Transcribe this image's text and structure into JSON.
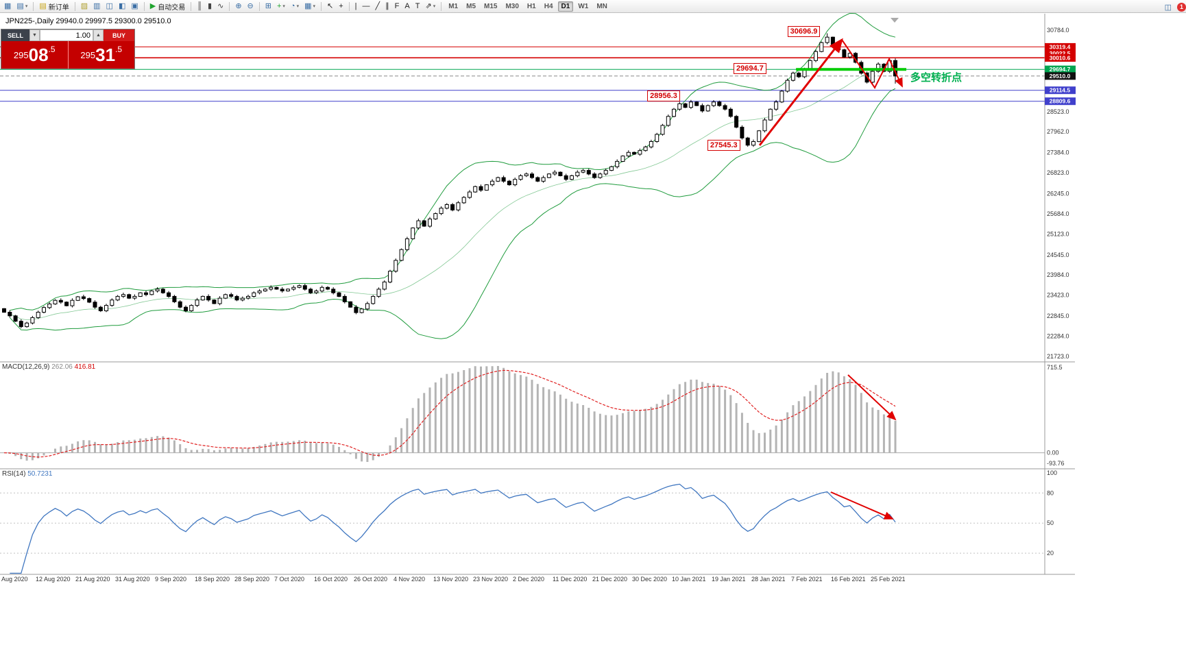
{
  "window": {
    "badge_count": "1"
  },
  "toolbar": {
    "dropdown_glyph": "▾",
    "items": [
      {
        "t": "icon",
        "name": "new-chart-icon",
        "g": "▦",
        "c": "#3a6ea5"
      },
      {
        "t": "icon",
        "name": "profiles-icon",
        "g": "▤",
        "c": "#3a6ea5",
        "dd": true
      },
      {
        "t": "sep"
      },
      {
        "t": "btn",
        "name": "new-order-button",
        "g": "▤",
        "c": "#c8a415",
        "label": "新订单"
      },
      {
        "t": "sep"
      },
      {
        "t": "icon",
        "name": "metaeditor-icon",
        "g": "▨",
        "c": "#b0a030"
      },
      {
        "t": "icon",
        "name": "market-watch-icon",
        "g": "▥",
        "c": "#3a6ea5"
      },
      {
        "t": "icon",
        "name": "data-window-icon",
        "g": "◫",
        "c": "#3a6ea5"
      },
      {
        "t": "icon",
        "name": "navigator-icon",
        "g": "◧",
        "c": "#3a6ea5"
      },
      {
        "t": "icon",
        "name": "terminal-icon",
        "g": "▣",
        "c": "#3a6ea5"
      },
      {
        "t": "sep"
      },
      {
        "t": "btn",
        "name": "autotrading-button",
        "g": "▶",
        "c": "#1fa32e",
        "label": "自动交易"
      },
      {
        "t": "sep"
      },
      {
        "t": "icon",
        "name": "bars-chart-icon",
        "g": "║",
        "c": "#444"
      },
      {
        "t": "icon",
        "name": "candlestick-chart-icon",
        "g": "▮",
        "c": "#444"
      },
      {
        "t": "icon",
        "name": "line-chart-icon",
        "g": "∿",
        "c": "#444"
      },
      {
        "t": "sep"
      },
      {
        "t": "icon",
        "name": "zoom-in-icon",
        "g": "⊕",
        "c": "#3a6ea5"
      },
      {
        "t": "icon",
        "name": "zoom-out-icon",
        "g": "⊖",
        "c": "#3a6ea5"
      },
      {
        "t": "sep"
      },
      {
        "t": "icon",
        "name": "tile-windows-icon",
        "g": "⊞",
        "c": "#3a6ea5"
      },
      {
        "t": "icon",
        "name": "indicators-icon",
        "g": "+",
        "c": "#1fa32e",
        "dd": true
      },
      {
        "t": "icon",
        "name": "periods-icon",
        "g": "◔",
        "c": "#3a6ea5",
        "dd": true
      },
      {
        "t": "icon",
        "name": "templates-icon",
        "g": "▦",
        "c": "#3a6ea5",
        "dd": true
      },
      {
        "t": "sep"
      },
      {
        "t": "icon",
        "name": "cursor-icon",
        "g": "↖",
        "c": "#222"
      },
      {
        "t": "icon",
        "name": "crosshair-icon",
        "g": "+",
        "c": "#222"
      },
      {
        "t": "sep"
      },
      {
        "t": "icon",
        "name": "vertical-line-icon",
        "g": "|",
        "c": "#222"
      },
      {
        "t": "icon",
        "name": "horizontal-line-icon",
        "g": "―",
        "c": "#222"
      },
      {
        "t": "icon",
        "name": "trendline-icon",
        "g": "╱",
        "c": "#222"
      },
      {
        "t": "icon",
        "name": "channel-icon",
        "g": "∥",
        "c": "#222"
      },
      {
        "t": "icon",
        "name": "fibonacci-icon",
        "g": "F",
        "c": "#222"
      },
      {
        "t": "icon",
        "name": "text-icon",
        "g": "A",
        "c": "#222"
      },
      {
        "t": "icon",
        "name": "label-icon",
        "g": "T",
        "c": "#222"
      },
      {
        "t": "icon",
        "name": "arrows-icon",
        "g": "⇗",
        "c": "#222",
        "dd": true
      },
      {
        "t": "sep"
      }
    ],
    "timeframes": [
      "M1",
      "M5",
      "M15",
      "M30",
      "H1",
      "H4",
      "D1",
      "W1",
      "MN"
    ],
    "active_timeframe": "D1",
    "right_icons": [
      {
        "name": "chart-window-icon",
        "g": "◫",
        "c": "#3a6ea5"
      },
      {
        "name": "alert-badge",
        "g": "1",
        "bg": "#e03030"
      }
    ]
  },
  "chart": {
    "symbol": "JPN225-",
    "period": "Daily",
    "title": "JPN225-,Daily 29940.0 29997.5 29300.0 29510.0",
    "ohlc": {
      "open": "29940.0",
      "high": "29997.5",
      "low": "29300.0",
      "close": "29510.0"
    }
  },
  "trade_panel": {
    "sell_label": "SELL",
    "buy_label": "BUY",
    "volume": "1.00",
    "spin_down_glyph": "▼",
    "spin_up_glyph": "▲",
    "sell_price": "29508.5",
    "buy_price": "29531.5",
    "sell_parts": {
      "head": "295",
      "big": "08",
      "frac": ".5"
    },
    "buy_parts": {
      "head": "295",
      "big": "31",
      "frac": ".5"
    }
  },
  "indicators_text": {
    "macd_name": "MACD(12,26,9)",
    "macd_value": "262.06",
    "macd_signal": "416.81",
    "rsi_name": "RSI(14)",
    "rsi_value": "50.7231"
  },
  "annotations": {
    "turning_point_label": "多空转折点",
    "callouts": [
      {
        "text": "30696.9",
        "bar": 138,
        "price": 30755
      },
      {
        "text": "29694.7",
        "bar": 128.5,
        "price": 29718
      },
      {
        "text": "28956.3",
        "bar": 113.3,
        "price": 28956
      },
      {
        "text": "27545.3",
        "bar": 123.9,
        "price": 27585
      }
    ],
    "hlines": [
      {
        "price": 30319.4,
        "label": "30319.4",
        "color": "#d40000",
        "style": "solid"
      },
      {
        "price": 30022.5,
        "label": "30022.5",
        "color": "#d40000",
        "style": "solid",
        "dy": -6
      },
      {
        "price": 30010.6,
        "label": "30010.6",
        "color": "#d40000",
        "style": "solid"
      },
      {
        "price": 29694.7,
        "label": "29694.7",
        "color": "#00a651",
        "style": "solid"
      },
      {
        "price": 29510.0,
        "label": "29510.0",
        "color": "#888888",
        "style": "dashed",
        "tag_bg": "#111111"
      },
      {
        "price": 29114.5,
        "label": "29114.5",
        "color": "#4040cc",
        "style": "solid"
      },
      {
        "price": 28809.6,
        "label": "28809.6",
        "color": "#4040cc",
        "style": "solid"
      }
    ],
    "support_segment": {
      "price": 29694.7,
      "bar_start": 139.5,
      "x_end": 1322,
      "color": "#00cc00"
    },
    "trend_arrows_main": [
      {
        "pts": [
          [
            1108,
            212
          ],
          [
            1228,
            58
          ]
        ],
        "w": 3
      },
      {
        "pts": [
          [
            1228,
            58
          ],
          [
            1276,
            128
          ],
          [
            1297,
            86
          ],
          [
            1316,
            126
          ]
        ],
        "w": 2
      }
    ],
    "macd_arrow": {
      "pts": [
        [
          1237,
          547
        ],
        [
          1306,
          612
        ]
      ],
      "w": 2
    },
    "rsi_arrow": {
      "pts": [
        [
          1212,
          718
        ],
        [
          1302,
          757
        ]
      ],
      "w": 2
    }
  },
  "chart_data": {
    "type": "candlestick",
    "symbol": "JPN225-",
    "timeframe": "Daily",
    "last_ohlc": {
      "open": 29940.0,
      "high": 29997.5,
      "low": 29300.0,
      "close": 29510.0
    },
    "first_open": 23050,
    "closes": [
      22950,
      22850,
      22700,
      22550,
      22650,
      22800,
      22950,
      23080,
      23180,
      23280,
      23230,
      23130,
      23280,
      23380,
      23330,
      23230,
      23090,
      22990,
      23140,
      23290,
      23390,
      23440,
      23340,
      23390,
      23490,
      23440,
      23540,
      23590,
      23490,
      23390,
      23240,
      23090,
      22990,
      23140,
      23290,
      23390,
      23290,
      23190,
      23340,
      23440,
      23390,
      23290,
      23340,
      23390,
      23490,
      23540,
      23590,
      23640,
      23590,
      23540,
      23590,
      23640,
      23690,
      23590,
      23490,
      23540,
      23640,
      23590,
      23490,
      23390,
      23240,
      23090,
      22940,
      23040,
      23190,
      23390,
      23590,
      23790,
      24090,
      24390,
      24690,
      24990,
      25290,
      25490,
      25340,
      25540,
      25690,
      25840,
      25940,
      25790,
      25990,
      26140,
      26290,
      26440,
      26340,
      26490,
      26590,
      26690,
      26590,
      26490,
      26640,
      26740,
      26790,
      26690,
      26590,
      26690,
      26790,
      26840,
      26740,
      26640,
      26740,
      26840,
      26890,
      26790,
      26690,
      26790,
      26890,
      26990,
      27140,
      27290,
      27390,
      27340,
      27440,
      27540,
      27690,
      27890,
      28140,
      28390,
      28590,
      28740,
      28640,
      28790,
      28690,
      28540,
      28690,
      28790,
      28690,
      28590,
      28390,
      28090,
      27790,
      27590,
      27690,
      27990,
      28290,
      28590,
      28790,
      29090,
      29390,
      29590,
      29490,
      29690,
      29940,
      30190,
      30440,
      30590,
      30390,
      30240,
      30040,
      30140,
      29890,
      29590,
      29340,
      29640,
      29840,
      29640,
      29940,
      29510
    ],
    "overrides": {
      "131": {
        "low": 27545.3
      },
      "145": {
        "high": 30696.9
      },
      "157": {
        "high": 29997.5,
        "low": 29300.0
      }
    },
    "indicators": {
      "bollinger": {
        "period": 20,
        "deviation": 2
      },
      "macd": {
        "fast": 12,
        "slow": 26,
        "signal": 9,
        "current": 262.06,
        "signal_current": 416.81
      },
      "rsi": {
        "period": 14,
        "current": 50.7231
      }
    },
    "y_ticks": [
      "30784.0",
      "28523.0",
      "27962.0",
      "27384.0",
      "26823.0",
      "26245.0",
      "25684.0",
      "25123.0",
      "24545.0",
      "23984.0",
      "23423.0",
      "22845.0",
      "22284.0",
      "21723.0"
    ],
    "macd_axis": [
      "715.5",
      "0.00",
      "-93.76"
    ],
    "rsi_axis": [
      "100",
      "80",
      "50",
      "20"
    ],
    "x_labels": [
      "Aug 2020",
      "12 Aug 2020",
      "21 Aug 2020",
      "31 Aug 2020",
      "9 Sep 2020",
      "18 Sep 2020",
      "28 Sep 2020",
      "7 Oct 2020",
      "16 Oct 2020",
      "26 Oct 2020",
      "4 Nov 2020",
      "13 Nov 2020",
      "23 Nov 2020",
      "2 Dec 2020",
      "11 Dec 2020",
      "21 Dec 2020",
      "30 Dec 2020",
      "10 Jan 2021",
      "19 Jan 2021",
      "28 Jan 2021",
      "7 Feb 2021",
      "16 Feb 2021",
      "25 Feb 2021"
    ]
  }
}
